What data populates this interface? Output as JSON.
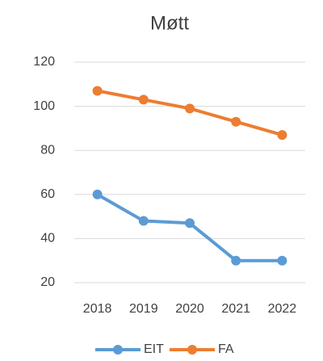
{
  "chart_data": {
    "type": "line",
    "title": "Møtt",
    "categories": [
      "2018",
      "2019",
      "2020",
      "2021",
      "2022"
    ],
    "series": [
      {
        "name": "EIT",
        "color": "#5b9bd5",
        "values": [
          60,
          48,
          47,
          30,
          30
        ]
      },
      {
        "name": "FA",
        "color": "#ed7d31",
        "values": [
          107,
          103,
          99,
          93,
          87
        ]
      }
    ],
    "ylim": [
      20,
      120
    ],
    "yticks": [
      20,
      40,
      60,
      80,
      100,
      120
    ],
    "grid": true,
    "legend": "bottom"
  }
}
